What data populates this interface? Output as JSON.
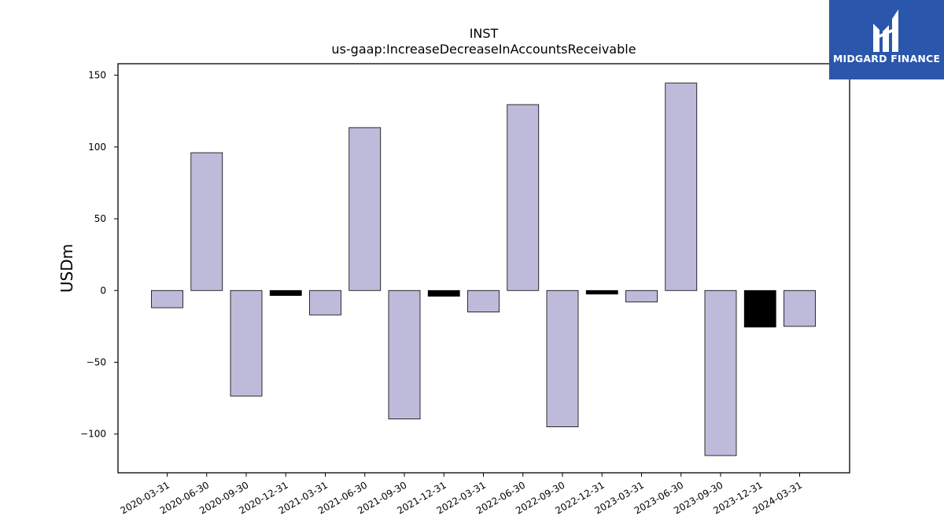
{
  "brand": {
    "name": "MIDGARD FINANCE",
    "background": "#2a57ab"
  },
  "chart_data": {
    "type": "bar",
    "title": "INST",
    "subtitle": "us-gaap:IncreaseDecreaseInAccountsReceivable",
    "xlabel": "",
    "ylabel": "USDm",
    "categories": [
      "2020-03-31",
      "2020-06-30",
      "2020-09-30",
      "2020-12-31",
      "2021-03-31",
      "2021-06-30",
      "2021-09-30",
      "2021-12-31",
      "2022-03-31",
      "2022-06-30",
      "2022-09-30",
      "2022-12-31",
      "2023-03-31",
      "2023-06-30",
      "2023-09-30",
      "2023-12-31",
      "2024-03-31"
    ],
    "values": [
      -12,
      96,
      -73.5,
      -3.5,
      -17,
      113.5,
      -89.5,
      -4,
      -15,
      129.5,
      -95,
      -2.5,
      -8,
      144.5,
      -115,
      -25.5,
      -25
    ],
    "bar_colors": [
      "#bebbda",
      "#bebbda",
      "#bebbda",
      "#000000",
      "#bebbda",
      "#bebbda",
      "#bebbda",
      "#000000",
      "#bebbda",
      "#bebbda",
      "#bebbda",
      "#000000",
      "#bebbda",
      "#bebbda",
      "#bebbda",
      "#000000",
      "#bebbda"
    ],
    "yticks": [
      -100,
      -50,
      0,
      50,
      100,
      150
    ],
    "ylim": [
      -127,
      158
    ],
    "grid": false,
    "legend": "none"
  }
}
